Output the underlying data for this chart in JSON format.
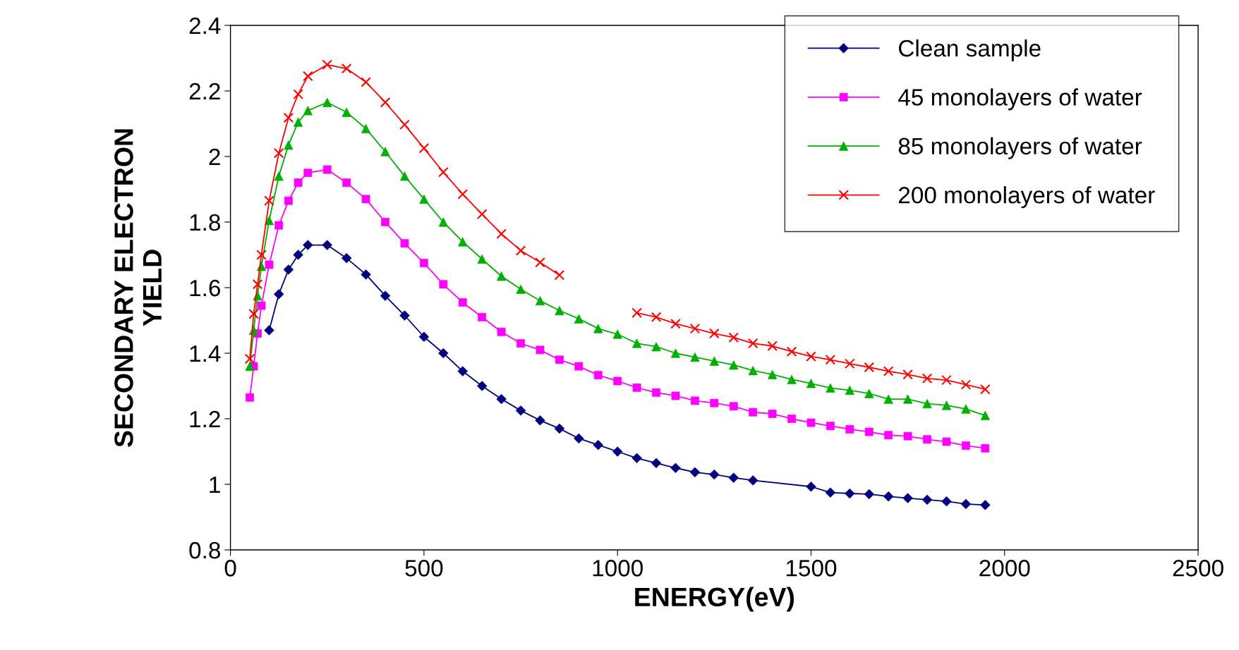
{
  "chart_data": {
    "type": "line",
    "xlabel": "ENERGY(eV)",
    "ylabel": "SECONDARY ELECTRON\nYIELD",
    "xlim": [
      0,
      2500
    ],
    "xticks": [
      0,
      500,
      1000,
      1500,
      2000,
      2500
    ],
    "ylim": [
      0.8,
      2.4
    ],
    "yticks": [
      0.8,
      1,
      1.2,
      1.4,
      1.6,
      1.8,
      2,
      2.2,
      2.4
    ],
    "grid": false,
    "legend": "top right",
    "line_style": "solid",
    "series": [
      {
        "name": "Clean sample",
        "color": "#000080",
        "marker": "diamond",
        "x": [
          100,
          125,
          150,
          175,
          200,
          250,
          300,
          350,
          400,
          450,
          500,
          550,
          600,
          650,
          700,
          750,
          800,
          850,
          900,
          950,
          1000,
          1050,
          1100,
          1150,
          1200,
          1250,
          1300,
          1350,
          1500,
          1550,
          1600,
          1650,
          1700,
          1750,
          1800,
          1850,
          1900,
          1950
        ],
        "values": [
          1.47,
          1.58,
          1.655,
          1.7,
          1.73,
          1.73,
          1.69,
          1.64,
          1.575,
          1.515,
          1.45,
          1.4,
          1.345,
          1.3,
          1.26,
          1.225,
          1.195,
          1.17,
          1.14,
          1.12,
          1.1,
          1.08,
          1.065,
          1.05,
          1.037,
          1.03,
          1.02,
          1.012,
          0.993,
          0.975,
          0.972,
          0.97,
          0.963,
          0.958,
          0.953,
          0.948,
          0.94,
          0.937
        ]
      },
      {
        "name": "45 monolayers of water",
        "color": "#ff00ff",
        "marker": "square",
        "x": [
          50,
          60,
          70,
          80,
          100,
          125,
          150,
          175,
          200,
          250,
          300,
          350,
          400,
          450,
          500,
          550,
          600,
          650,
          700,
          750,
          800,
          850,
          900,
          950,
          1000,
          1050,
          1100,
          1150,
          1200,
          1250,
          1300,
          1350,
          1400,
          1450,
          1500,
          1550,
          1600,
          1650,
          1700,
          1750,
          1800,
          1850,
          1900,
          1950
        ],
        "values": [
          1.265,
          1.36,
          1.46,
          1.545,
          1.67,
          1.79,
          1.865,
          1.92,
          1.95,
          1.96,
          1.92,
          1.87,
          1.8,
          1.735,
          1.675,
          1.61,
          1.555,
          1.51,
          1.465,
          1.43,
          1.41,
          1.38,
          1.36,
          1.333,
          1.315,
          1.295,
          1.28,
          1.27,
          1.255,
          1.248,
          1.238,
          1.22,
          1.215,
          1.2,
          1.188,
          1.178,
          1.168,
          1.16,
          1.15,
          1.147,
          1.137,
          1.13,
          1.118,
          1.11
        ]
      },
      {
        "name": "85 monolayers of water",
        "color": "#00b000",
        "marker": "triangle",
        "x": [
          50,
          60,
          70,
          80,
          100,
          125,
          150,
          175,
          200,
          250,
          300,
          350,
          400,
          450,
          500,
          550,
          600,
          650,
          700,
          750,
          800,
          850,
          900,
          950,
          1000,
          1050,
          1100,
          1150,
          1200,
          1250,
          1300,
          1350,
          1400,
          1450,
          1500,
          1550,
          1600,
          1650,
          1700,
          1750,
          1800,
          1850,
          1900,
          1950
        ],
        "values": [
          1.36,
          1.47,
          1.575,
          1.665,
          1.805,
          1.94,
          2.035,
          2.105,
          2.14,
          2.165,
          2.135,
          2.085,
          2.015,
          1.94,
          1.87,
          1.8,
          1.74,
          1.687,
          1.635,
          1.595,
          1.56,
          1.53,
          1.505,
          1.475,
          1.458,
          1.43,
          1.42,
          1.4,
          1.388,
          1.376,
          1.364,
          1.347,
          1.335,
          1.32,
          1.308,
          1.294,
          1.287,
          1.277,
          1.26,
          1.26,
          1.246,
          1.241,
          1.23,
          1.21
        ]
      },
      {
        "name": "200 monolayers of water",
        "color": "#ff0000",
        "marker": "cross",
        "x": [
          50,
          60,
          70,
          80,
          100,
          125,
          150,
          175,
          200,
          250,
          300,
          350,
          400,
          450,
          500,
          550,
          600,
          650,
          700,
          750,
          800,
          850,
          900,
          950,
          1000,
          1050,
          1100,
          1150,
          1200,
          1250,
          1300,
          1350,
          1400,
          1450,
          1500,
          1550,
          1600,
          1650,
          1700,
          1750,
          1800,
          1850,
          1900,
          1950
        ],
        "values": [
          1.383,
          1.52,
          1.61,
          1.7,
          1.865,
          2.01,
          2.118,
          2.19,
          2.245,
          2.28,
          2.268,
          2.227,
          2.165,
          2.097,
          2.025,
          1.952,
          1.885,
          1.824,
          1.764,
          1.713,
          1.677,
          1.638,
          null,
          null,
          null,
          1.523,
          1.51,
          1.49,
          1.475,
          1.46,
          1.448,
          1.43,
          1.422,
          1.405,
          1.39,
          1.38,
          1.368,
          1.357,
          1.345,
          1.335,
          1.323,
          1.318,
          1.304,
          1.29
        ]
      }
    ]
  }
}
